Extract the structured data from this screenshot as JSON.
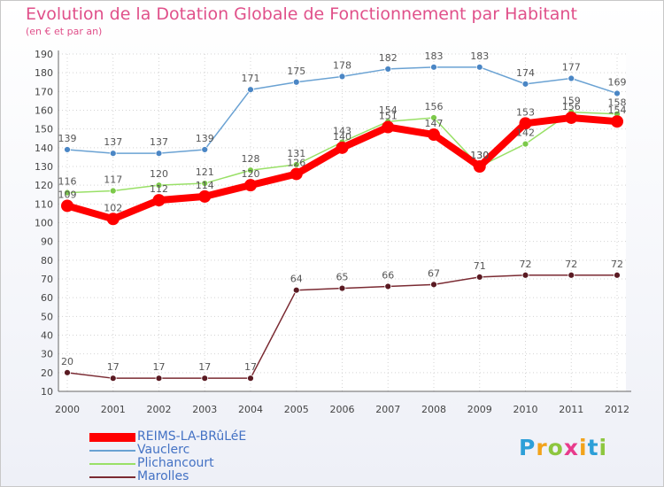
{
  "chart_data": {
    "type": "line",
    "title": "Evolution de la Dotation Globale de Fonctionnement par Habitant",
    "subtitle": "(en € et par an)",
    "xlabel": "",
    "ylabel": "",
    "ylim": [
      10,
      190
    ],
    "yticks": [
      10,
      20,
      30,
      40,
      50,
      60,
      70,
      80,
      90,
      100,
      110,
      120,
      130,
      140,
      150,
      160,
      170,
      180,
      190
    ],
    "categories": [
      "2000",
      "2001",
      "2002",
      "2003",
      "2004",
      "2005",
      "2006",
      "2007",
      "2008",
      "2009",
      "2010",
      "2011",
      "2012"
    ],
    "grid": true,
    "legend_position": "bottom-left",
    "series": [
      {
        "name": "REIMS-LA-BRûLéE",
        "color": "#ff0000",
        "values": [
          109,
          102,
          112,
          114,
          120,
          126,
          140,
          151,
          147,
          130,
          153,
          156,
          154
        ]
      },
      {
        "name": "Vauclerc",
        "color": "#6aa2d3",
        "values": [
          139,
          137,
          137,
          139,
          171,
          175,
          178,
          182,
          183,
          183,
          174,
          177,
          169
        ]
      },
      {
        "name": "Plichancourt",
        "color": "#99e067",
        "values": [
          116,
          117,
          120,
          121,
          128,
          131,
          143,
          154,
          156,
          130,
          142,
          159,
          158
        ]
      },
      {
        "name": "Marolles",
        "color": "#7a2a32",
        "values": [
          20,
          17,
          17,
          17,
          17,
          64,
          65,
          66,
          67,
          71,
          72,
          72,
          72
        ]
      }
    ]
  },
  "logo": {
    "text": "Proxiti",
    "colors": [
      "#2d9fd8",
      "#f2a31b",
      "#8dc63f",
      "#e83b8c",
      "#f2a31b",
      "#2d9fd8",
      "#8dc63f"
    ]
  }
}
